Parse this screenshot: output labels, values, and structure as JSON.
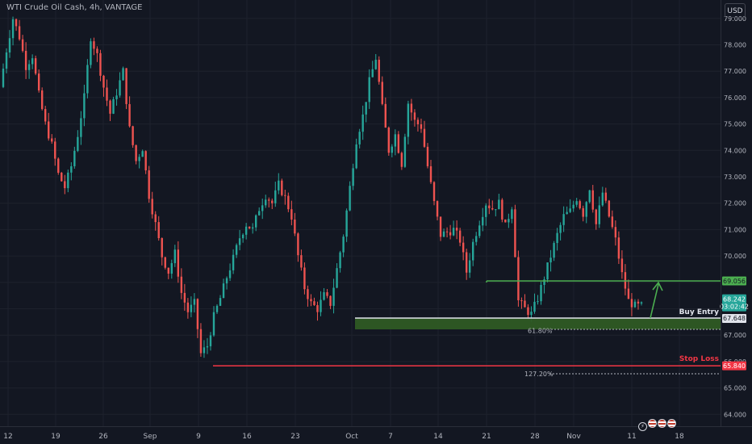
{
  "header": {
    "symbol_title": "WTI Crude Oil Cash, 4h, VANTAGE",
    "currency_button": "USD"
  },
  "colors": {
    "bull": "#26a69a",
    "bear": "#ef5350",
    "level_green": "#4caf50",
    "stop_red": "#f23645",
    "entry_zone": "#2e5a24",
    "label_price": "#2962ff"
  },
  "chart_data": {
    "type": "candlestick",
    "title": "WTI Crude Oil Cash, 4h, VANTAGE",
    "x_ticks": [
      "12",
      "19",
      "26",
      "Sep",
      "9",
      "16",
      "23",
      "Oct",
      "7",
      "14",
      "21",
      "28",
      "Nov",
      "11",
      "18"
    ],
    "y_ticks": [
      "64.000",
      "65.000",
      "66.000",
      "67.000",
      "68.000",
      "69.000",
      "70.000",
      "71.000",
      "72.000",
      "73.000",
      "74.000",
      "75.000",
      "76.000",
      "77.000",
      "78.000",
      "79.000"
    ],
    "ylim": [
      63.6,
      79.2
    ],
    "price_path": [
      [
        0,
        76.4
      ],
      [
        2,
        77.8
      ],
      [
        4,
        79.0
      ],
      [
        6,
        78.3
      ],
      [
        8,
        77.2
      ],
      [
        10,
        77.6
      ],
      [
        12,
        76.1
      ],
      [
        14,
        75.0
      ],
      [
        16,
        74.2
      ],
      [
        18,
        73.1
      ],
      [
        20,
        72.6
      ],
      [
        22,
        73.4
      ],
      [
        24,
        74.6
      ],
      [
        26,
        76.0
      ],
      [
        28,
        78.3
      ],
      [
        30,
        77.6
      ],
      [
        32,
        76.4
      ],
      [
        34,
        75.4
      ],
      [
        36,
        76.2
      ],
      [
        38,
        77.0
      ],
      [
        40,
        74.8
      ],
      [
        42,
        73.6
      ],
      [
        44,
        74.1
      ],
      [
        46,
        72.3
      ],
      [
        48,
        71.2
      ],
      [
        50,
        70.0
      ],
      [
        52,
        69.4
      ],
      [
        54,
        70.1
      ],
      [
        56,
        68.6
      ],
      [
        58,
        67.9
      ],
      [
        60,
        68.2
      ],
      [
        62,
        66.3
      ],
      [
        64,
        66.6
      ],
      [
        66,
        67.7
      ],
      [
        68,
        68.4
      ],
      [
        70,
        69.2
      ],
      [
        72,
        69.9
      ],
      [
        74,
        70.7
      ],
      [
        76,
        71.2
      ],
      [
        78,
        71.0
      ],
      [
        80,
        71.8
      ],
      [
        82,
        72.3
      ],
      [
        84,
        72.0
      ],
      [
        86,
        72.7
      ],
      [
        88,
        72.2
      ],
      [
        90,
        71.5
      ],
      [
        92,
        70.0
      ],
      [
        94,
        68.8
      ],
      [
        96,
        68.2
      ],
      [
        98,
        68.0
      ],
      [
        100,
        68.5
      ],
      [
        102,
        68.2
      ],
      [
        104,
        69.5
      ],
      [
        106,
        70.8
      ],
      [
        108,
        72.6
      ],
      [
        110,
        74.4
      ],
      [
        112,
        75.3
      ],
      [
        114,
        76.6
      ],
      [
        116,
        77.5
      ],
      [
        118,
        75.6
      ],
      [
        120,
        74.0
      ],
      [
        122,
        74.6
      ],
      [
        124,
        73.5
      ],
      [
        126,
        75.8
      ],
      [
        128,
        75.1
      ],
      [
        130,
        74.9
      ],
      [
        132,
        73.4
      ],
      [
        134,
        72.0
      ],
      [
        136,
        70.8
      ],
      [
        138,
        70.9
      ],
      [
        140,
        71.0
      ],
      [
        142,
        70.6
      ],
      [
        144,
        69.4
      ],
      [
        146,
        70.5
      ],
      [
        148,
        71.3
      ],
      [
        150,
        72.0
      ],
      [
        152,
        71.8
      ],
      [
        154,
        72.0
      ],
      [
        156,
        71.1
      ],
      [
        158,
        71.9
      ],
      [
        160,
        68.3
      ],
      [
        162,
        68.0
      ],
      [
        164,
        67.8
      ],
      [
        166,
        68.4
      ],
      [
        168,
        69.2
      ],
      [
        170,
        70.0
      ],
      [
        172,
        70.8
      ],
      [
        174,
        71.5
      ],
      [
        176,
        71.7
      ],
      [
        178,
        72.2
      ],
      [
        180,
        71.6
      ],
      [
        182,
        72.6
      ],
      [
        184,
        71.2
      ],
      [
        186,
        72.4
      ],
      [
        188,
        71.5
      ],
      [
        190,
        70.6
      ],
      [
        192,
        69.3
      ],
      [
        194,
        68.3
      ],
      [
        196,
        68.1
      ]
    ],
    "levels": [
      {
        "name": "target",
        "price": 69.056,
        "label": "69.056"
      },
      {
        "name": "entry",
        "price": 67.648,
        "label": "67.648",
        "text": "Buy Entry"
      },
      {
        "name": "stop",
        "price": 65.84,
        "label": "65.840",
        "text": "Stop Loss"
      }
    ],
    "fib_labels": [
      {
        "text": "61.80%",
        "price": 67.2
      },
      {
        "text": "127.20%",
        "price": 65.54
      }
    ],
    "current_price": {
      "price": "68.242",
      "countdown": "03:02:42"
    }
  }
}
